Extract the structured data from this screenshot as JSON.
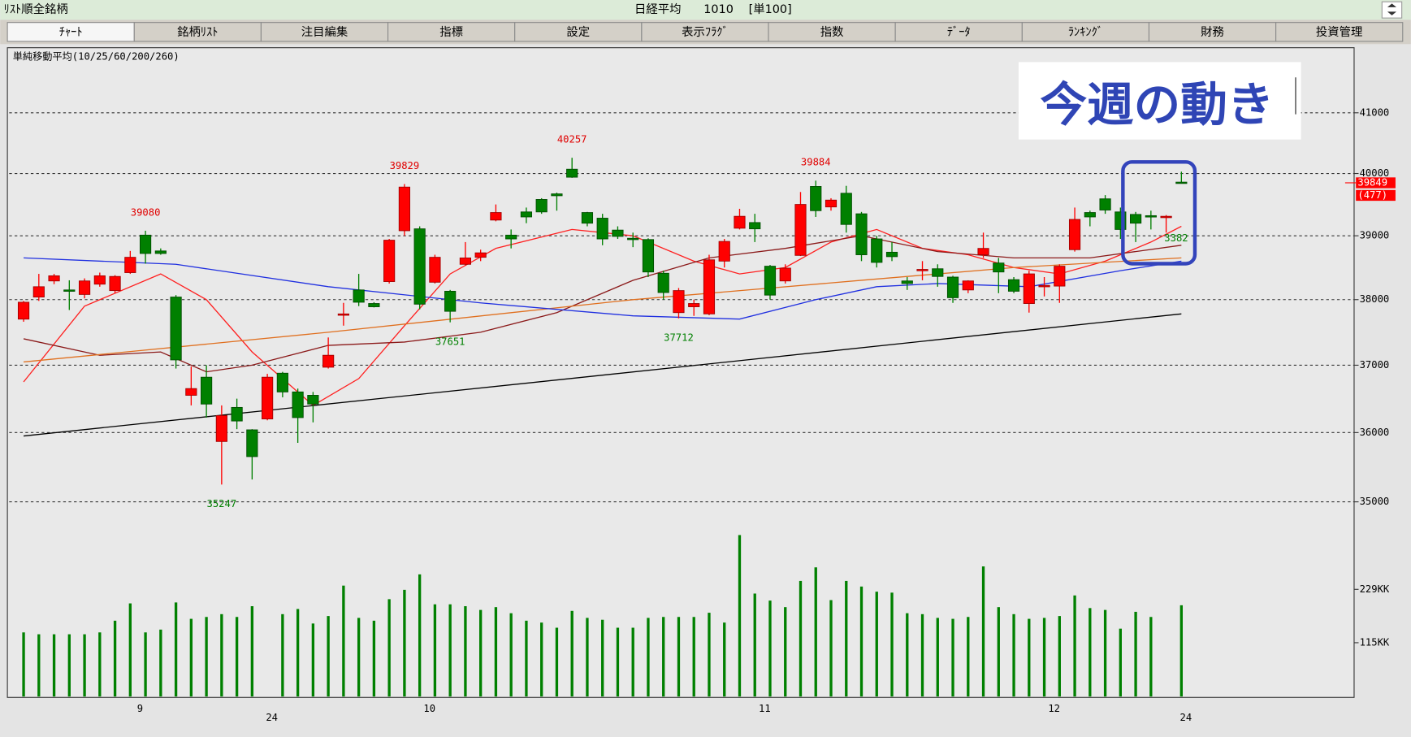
{
  "header": {
    "left": "ﾘｽﾄ順全銘柄",
    "title": "日経平均",
    "code": "1010",
    "unit": "[単100]"
  },
  "tabs": [
    "ﾁｬｰﾄ",
    "銘柄ﾘｽﾄ",
    "注目編集",
    "指標",
    "設定",
    "表示ﾌﾗｸﾞ",
    "指数",
    "ﾃﾞｰﾀ",
    "ﾗﾝｷﾝｸﾞ",
    "財務",
    "投資管理"
  ],
  "overlay_text": "今週の動き",
  "chart_data": {
    "type": "candlestick",
    "subtitle": "単純移動平均(10/25/60/200/260)",
    "categories": [
      null,
      null,
      null,
      null,
      null,
      null,
      null,
      null,
      "9",
      null,
      null,
      null,
      null,
      null,
      null,
      null,
      null,
      null,
      null,
      null,
      null,
      null,
      null,
      null,
      null,
      null,
      null,
      "10",
      null,
      null,
      null,
      null,
      null,
      null,
      null,
      null,
      null,
      null,
      null,
      null,
      null,
      null,
      null,
      null,
      null,
      null,
      null,
      null,
      null,
      "11",
      null,
      null,
      null,
      null,
      null,
      null,
      null,
      null,
      null,
      null,
      null,
      null,
      null,
      null,
      null,
      null,
      null,
      null,
      "12",
      null,
      null,
      null,
      null,
      null,
      null,
      null,
      null
    ],
    "categories_sub": [
      null,
      null,
      null,
      null,
      null,
      null,
      null,
      null,
      null,
      null,
      null,
      null,
      null,
      null,
      null,
      null,
      "24",
      null,
      null,
      null,
      null,
      null,
      null,
      null,
      null,
      null,
      null,
      null,
      null,
      null,
      null,
      null,
      null,
      null,
      null,
      null,
      null,
      null,
      null,
      null,
      null,
      null,
      null,
      null,
      null,
      null,
      null,
      null,
      null,
      null,
      null,
      null,
      null,
      null,
      null,
      null,
      null,
      null,
      null,
      null,
      null,
      null,
      null,
      null,
      null,
      null,
      null,
      null,
      null,
      null,
      null,
      null,
      null,
      null,
      null,
      null,
      "24"
    ],
    "open": [
      37700,
      38040,
      38290,
      38150,
      38080,
      38240,
      38140,
      38420,
      39010,
      38760,
      38040,
      36550,
      36820,
      35870,
      36370,
      36040,
      36200,
      36880,
      36600,
      36550,
      36970,
      37760,
      38150,
      37940,
      38280,
      39080,
      39110,
      38270,
      38130,
      38550,
      38660,
      39250,
      39010,
      39380,
      39580,
      39670,
      40070,
      39370,
      39280,
      39090,
      38960,
      38940,
      38410,
      37800,
      37890,
      37780,
      38600,
      39120,
      39210,
      38520,
      38290,
      38690,
      39790,
      39460,
      39680,
      39350,
      38950,
      38740,
      38290,
      38450,
      38480,
      38350,
      38150,
      38700,
      38570,
      38310,
      37940,
      38200,
      38210,
      38780,
      39370,
      39590,
      39380,
      39340,
      39320,
      39290,
      39860
    ],
    "high": [
      37980,
      38400,
      38400,
      38300,
      38330,
      38420,
      38380,
      38760,
      39080,
      38800,
      38070,
      36980,
      37000,
      36400,
      36500,
      36050,
      36870,
      36900,
      36650,
      36600,
      37420,
      37950,
      38400,
      37960,
      38950,
      39829,
      39150,
      38700,
      38150,
      38900,
      38780,
      39500,
      39100,
      39450,
      39600,
      39690,
      40257,
      39380,
      39350,
      39150,
      39050,
      38960,
      38450,
      38180,
      38000,
      38700,
      38950,
      39430,
      39350,
      38540,
      38550,
      39700,
      39884,
      39600,
      39800,
      39380,
      39000,
      38900,
      38350,
      38600,
      38550,
      38370,
      38300,
      39050,
      38650,
      38350,
      38450,
      38350,
      38550,
      39450,
      39400,
      39650,
      39450,
      39380,
      39400,
      39330,
      40030
    ],
    "low": [
      37660,
      37980,
      38240,
      37840,
      38020,
      38200,
      38100,
      38400,
      38560,
      38700,
      36950,
      36400,
      36220,
      35247,
      36050,
      35320,
      36180,
      36520,
      35850,
      36150,
      36950,
      37600,
      37900,
      37880,
      38250,
      39000,
      37850,
      38250,
      37651,
      38530,
      38600,
      39230,
      38800,
      39200,
      39350,
      39400,
      39930,
      39150,
      38850,
      38950,
      38820,
      38350,
      38000,
      37712,
      37750,
      37760,
      38500,
      39100,
      38900,
      38000,
      38250,
      38680,
      39300,
      39400,
      39050,
      38600,
      38500,
      38600,
      38150,
      38300,
      38200,
      37950,
      38100,
      38650,
      38100,
      38100,
      37800,
      38050,
      37950,
      38750,
      39150,
      39350,
      38950,
      38900,
      39100,
      39050,
      39849
    ],
    "close": [
      37960,
      38200,
      38370,
      38130,
      38290,
      38370,
      38360,
      38660,
      38720,
      38720,
      37080,
      36650,
      36420,
      36250,
      36170,
      35650,
      36820,
      36600,
      36220,
      36420,
      37150,
      37780,
      37960,
      37890,
      38930,
      39780,
      37930,
      38660,
      37820,
      38650,
      38730,
      39370,
      38950,
      39300,
      39380,
      39640,
      39940,
      39200,
      38950,
      38990,
      38950,
      38430,
      38110,
      38140,
      37940,
      38620,
      38910,
      39310,
      39110,
      38070,
      38490,
      39500,
      39400,
      39570,
      39180,
      38700,
      38580,
      38670,
      38250,
      38470,
      38360,
      38030,
      38290,
      38800,
      38430,
      38130,
      38400,
      38220,
      38520,
      39260,
      39300,
      39410,
      39100,
      39200,
      39300,
      39310,
      39849
    ],
    "up_color": "#ff0000",
    "down_color": "#008000",
    "ylim": [
      34500,
      42100
    ],
    "log_scale": true,
    "yticks": [
      35000,
      36000,
      37000,
      38000,
      39000,
      40000,
      41000
    ],
    "grid": true,
    "moving_averages": [
      {
        "color": "#ff2020",
        "x": [
          0,
          4,
          9,
          12,
          15,
          19,
          22,
          25,
          28,
          31,
          36,
          40,
          44,
          47,
          50,
          53,
          56,
          59,
          62,
          65,
          68,
          71,
          74,
          76
        ],
        "values": [
          36750,
          37900,
          38400,
          38000,
          37200,
          36400,
          36800,
          37600,
          38400,
          38800,
          39100,
          39000,
          38600,
          38400,
          38500,
          38900,
          39100,
          38800,
          38700,
          38500,
          38400,
          38600,
          38900,
          39150
        ]
      },
      {
        "color": "#8b1a1a",
        "x": [
          0,
          5,
          9,
          12,
          15,
          20,
          25,
          30,
          35,
          40,
          45,
          50,
          55,
          60,
          65,
          70,
          76
        ],
        "values": [
          37400,
          37150,
          37200,
          36900,
          37000,
          37300,
          37350,
          37500,
          37800,
          38300,
          38650,
          38800,
          39000,
          38750,
          38650,
          38650,
          38850
        ]
      },
      {
        "color": "#e07020",
        "x": [
          0,
          20,
          40,
          55,
          65,
          76
        ],
        "values": [
          37050,
          37500,
          38000,
          38300,
          38500,
          38650
        ]
      },
      {
        "color": "#2030e0",
        "x": [
          0,
          10,
          20,
          30,
          40,
          47,
          52,
          56,
          60,
          66,
          72,
          76
        ],
        "values": [
          38650,
          38550,
          38200,
          37950,
          37750,
          37700,
          38000,
          38200,
          38250,
          38200,
          38450,
          38600
        ]
      },
      {
        "color": "#000000",
        "x": [
          0,
          38,
          76
        ],
        "values": [
          35950,
          36850,
          37780
        ]
      }
    ],
    "high_labels": [
      {
        "x": 8,
        "value": 39080
      },
      {
        "x": 25,
        "value": 39829
      },
      {
        "x": 36,
        "value": 40257
      },
      {
        "x": 52,
        "value": 39884
      }
    ],
    "low_labels": [
      {
        "x": 13,
        "value": 35247
      },
      {
        "x": 28,
        "value": 37651
      },
      {
        "x": 43,
        "value": 37712
      }
    ],
    "partial_label": "3382",
    "last_price": 39849,
    "last_change_label": "(477)",
    "volume": {
      "color": "#008000",
      "values": [
        137,
        133,
        133,
        133,
        133,
        137,
        162,
        199,
        137,
        143,
        201,
        166,
        170,
        176,
        170,
        193,
        null,
        176,
        187,
        156,
        172,
        237,
        168,
        162,
        208,
        228,
        261,
        197,
        197,
        193,
        185,
        191,
        178,
        162,
        158,
        147,
        183,
        168,
        164,
        147,
        147,
        168,
        170,
        170,
        170,
        179,
        158,
        345,
        220,
        205,
        191,
        247,
        276,
        206,
        247,
        235,
        224,
        222,
        178,
        176,
        168,
        166,
        170,
        278,
        191,
        176,
        166,
        168,
        172,
        216,
        189,
        185,
        145,
        181,
        170,
        null,
        195
      ],
      "ylim": [
        0,
        400
      ],
      "yticks": [
        {
          "value": 229,
          "label": "229KK"
        },
        {
          "value": 115,
          "label": "115KK"
        }
      ]
    }
  }
}
